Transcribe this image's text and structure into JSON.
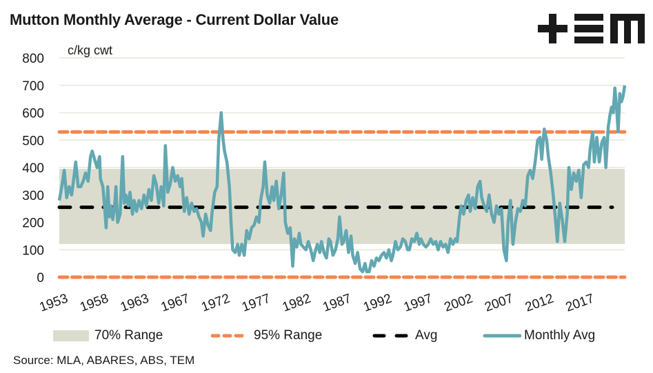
{
  "title": "Mutton Monthly Average - Current Dollar Value",
  "logo": {
    "name": "tem-logo",
    "glyphs": [
      "plus",
      "equals-triple",
      "m"
    ]
  },
  "source": "Source: MLA, ABARES, ABS, TEM",
  "colors": {
    "monthly": "#62a7b1",
    "avg": "#000000",
    "range95": "#f4854e",
    "range70": "#dcdcce",
    "grid": "#ecece4"
  },
  "legend": [
    {
      "key": "range70",
      "label": "70% Range"
    },
    {
      "key": "range95",
      "label": "95% Range"
    },
    {
      "key": "avg",
      "label": "Avg"
    },
    {
      "key": "monthly",
      "label": "Monthly Avg"
    }
  ],
  "chart_data": {
    "type": "line",
    "title": "Mutton Monthly Average - Current Dollar Value",
    "ylabel": "c/kg cwt",
    "xlabel": "",
    "ylim": [
      0,
      800
    ],
    "yticks": [
      0,
      100,
      200,
      300,
      400,
      500,
      600,
      700,
      800
    ],
    "xlim": [
      1953,
      2020.5
    ],
    "xtick_labels": [
      "1953",
      "1958",
      "1963",
      "1967",
      "1972",
      "1977",
      "1982",
      "1987",
      "1992",
      "1997",
      "2002",
      "2007",
      "2012",
      "2017"
    ],
    "grid": true,
    "legend_position": "bottom",
    "bands": {
      "range70": {
        "low": 121,
        "high": 395
      },
      "range95": {
        "low": 0,
        "high": 530
      },
      "avg": 255
    },
    "series": [
      {
        "name": "Monthly Avg",
        "points": [
          [
            1953.0,
            280
          ],
          [
            1953.3,
            330
          ],
          [
            1953.6,
            390
          ],
          [
            1953.9,
            290
          ],
          [
            1954.2,
            330
          ],
          [
            1954.5,
            300
          ],
          [
            1954.8,
            370
          ],
          [
            1955.0,
            420
          ],
          [
            1955.3,
            330
          ],
          [
            1955.6,
            330
          ],
          [
            1955.9,
            350
          ],
          [
            1956.2,
            380
          ],
          [
            1956.5,
            350
          ],
          [
            1956.8,
            440
          ],
          [
            1957.0,
            460
          ],
          [
            1957.3,
            430
          ],
          [
            1957.6,
            400
          ],
          [
            1957.9,
            440
          ],
          [
            1958.0,
            360
          ],
          [
            1958.3,
            330
          ],
          [
            1958.5,
            260
          ],
          [
            1958.7,
            180
          ],
          [
            1958.9,
            330
          ],
          [
            1959.1,
            220
          ],
          [
            1959.3,
            260
          ],
          [
            1959.5,
            210
          ],
          [
            1959.7,
            250
          ],
          [
            1959.9,
            330
          ],
          [
            1960.1,
            200
          ],
          [
            1960.4,
            230
          ],
          [
            1960.7,
            440
          ],
          [
            1960.9,
            270
          ],
          [
            1961.1,
            300
          ],
          [
            1961.4,
            260
          ],
          [
            1961.6,
            310
          ],
          [
            1961.9,
            230
          ],
          [
            1962.1,
            280
          ],
          [
            1962.4,
            240
          ],
          [
            1962.7,
            280
          ],
          [
            1963.0,
            250
          ],
          [
            1963.3,
            300
          ],
          [
            1963.6,
            260
          ],
          [
            1963.9,
            320
          ],
          [
            1964.2,
            280
          ],
          [
            1964.5,
            370
          ],
          [
            1964.8,
            340
          ],
          [
            1965.1,
            270
          ],
          [
            1965.4,
            330
          ],
          [
            1965.7,
            260
          ],
          [
            1965.9,
            480
          ],
          [
            1966.2,
            310
          ],
          [
            1966.5,
            340
          ],
          [
            1966.8,
            400
          ],
          [
            1967.1,
            350
          ],
          [
            1967.4,
            370
          ],
          [
            1967.7,
            330
          ],
          [
            1967.9,
            360
          ],
          [
            1968.2,
            240
          ],
          [
            1968.5,
            290
          ],
          [
            1968.8,
            230
          ],
          [
            1969.1,
            270
          ],
          [
            1969.4,
            240
          ],
          [
            1969.7,
            250
          ],
          [
            1970.0,
            220
          ],
          [
            1970.3,
            200
          ],
          [
            1970.5,
            150
          ],
          [
            1970.8,
            230
          ],
          [
            1971.1,
            190
          ],
          [
            1971.4,
            170
          ],
          [
            1971.6,
            240
          ],
          [
            1971.9,
            310
          ],
          [
            1972.2,
            330
          ],
          [
            1972.4,
            500
          ],
          [
            1972.7,
            600
          ],
          [
            1972.9,
            510
          ],
          [
            1973.1,
            460
          ],
          [
            1973.4,
            420
          ],
          [
            1973.7,
            330
          ],
          [
            1973.9,
            200
          ],
          [
            1974.1,
            100
          ],
          [
            1974.4,
            90
          ],
          [
            1974.7,
            120
          ],
          [
            1974.9,
            80
          ],
          [
            1975.2,
            120
          ],
          [
            1975.5,
            80
          ],
          [
            1975.8,
            170
          ],
          [
            1976.1,
            140
          ],
          [
            1976.4,
            180
          ],
          [
            1976.7,
            190
          ],
          [
            1977.0,
            220
          ],
          [
            1977.3,
            200
          ],
          [
            1977.5,
            280
          ],
          [
            1977.8,
            330
          ],
          [
            1978.0,
            420
          ],
          [
            1978.3,
            300
          ],
          [
            1978.6,
            270
          ],
          [
            1978.9,
            330
          ],
          [
            1979.1,
            280
          ],
          [
            1979.4,
            350
          ],
          [
            1979.7,
            250
          ],
          [
            1980.0,
            300
          ],
          [
            1980.3,
            380
          ],
          [
            1980.5,
            200
          ],
          [
            1980.8,
            160
          ],
          [
            1981.1,
            180
          ],
          [
            1981.4,
            40
          ],
          [
            1981.6,
            140
          ],
          [
            1981.9,
            110
          ],
          [
            1982.2,
            160
          ],
          [
            1982.4,
            120
          ],
          [
            1982.7,
            110
          ],
          [
            1983.0,
            100
          ],
          [
            1983.3,
            130
          ],
          [
            1983.6,
            100
          ],
          [
            1983.9,
            60
          ],
          [
            1984.1,
            90
          ],
          [
            1984.4,
            120
          ],
          [
            1984.7,
            90
          ],
          [
            1984.9,
            130
          ],
          [
            1985.2,
            90
          ],
          [
            1985.5,
            70
          ],
          [
            1985.8,
            140
          ],
          [
            1986.0,
            130
          ],
          [
            1986.3,
            80
          ],
          [
            1986.6,
            100
          ],
          [
            1986.9,
            140
          ],
          [
            1987.1,
            220
          ],
          [
            1987.4,
            120
          ],
          [
            1987.6,
            130
          ],
          [
            1987.9,
            170
          ],
          [
            1988.2,
            90
          ],
          [
            1988.5,
            150
          ],
          [
            1988.7,
            80
          ],
          [
            1989.0,
            50
          ],
          [
            1989.3,
            90
          ],
          [
            1989.6,
            30
          ],
          [
            1989.9,
            20
          ],
          [
            1990.2,
            50
          ],
          [
            1990.4,
            20
          ],
          [
            1990.7,
            20
          ],
          [
            1991.0,
            60
          ],
          [
            1991.3,
            40
          ],
          [
            1991.6,
            70
          ],
          [
            1991.9,
            60
          ],
          [
            1992.2,
            80
          ],
          [
            1992.5,
            90
          ],
          [
            1992.8,
            70
          ],
          [
            1993.1,
            100
          ],
          [
            1993.4,
            60
          ],
          [
            1993.6,
            80
          ],
          [
            1993.9,
            130
          ],
          [
            1994.2,
            100
          ],
          [
            1994.5,
            110
          ],
          [
            1994.8,
            140
          ],
          [
            1995.1,
            130
          ],
          [
            1995.4,
            100
          ],
          [
            1995.6,
            100
          ],
          [
            1995.9,
            140
          ],
          [
            1996.2,
            130
          ],
          [
            1996.5,
            160
          ],
          [
            1996.8,
            120
          ],
          [
            1997.0,
            140
          ],
          [
            1997.3,
            120
          ],
          [
            1997.6,
            110
          ],
          [
            1997.9,
            120
          ],
          [
            1998.2,
            140
          ],
          [
            1998.5,
            120
          ],
          [
            1998.8,
            130
          ],
          [
            1999.1,
            100
          ],
          [
            1999.4,
            130
          ],
          [
            1999.7,
            110
          ],
          [
            2000.0,
            120
          ],
          [
            2000.3,
            90
          ],
          [
            2000.6,
            140
          ],
          [
            2000.9,
            120
          ],
          [
            2001.2,
            140
          ],
          [
            2001.4,
            130
          ],
          [
            2001.7,
            220
          ],
          [
            2001.9,
            260
          ],
          [
            2002.2,
            230
          ],
          [
            2002.5,
            280
          ],
          [
            2002.8,
            300
          ],
          [
            2003.0,
            240
          ],
          [
            2003.3,
            290
          ],
          [
            2003.6,
            250
          ],
          [
            2003.9,
            330
          ],
          [
            2004.2,
            350
          ],
          [
            2004.4,
            290
          ],
          [
            2004.7,
            260
          ],
          [
            2005.0,
            240
          ],
          [
            2005.3,
            300
          ],
          [
            2005.6,
            230
          ],
          [
            2005.9,
            200
          ],
          [
            2006.2,
            260
          ],
          [
            2006.5,
            230
          ],
          [
            2006.8,
            250
          ],
          [
            2007.1,
            100
          ],
          [
            2007.4,
            60
          ],
          [
            2007.6,
            200
          ],
          [
            2007.9,
            280
          ],
          [
            2008.2,
            120
          ],
          [
            2008.5,
            200
          ],
          [
            2008.8,
            250
          ],
          [
            2009.1,
            240
          ],
          [
            2009.4,
            280
          ],
          [
            2009.7,
            260
          ],
          [
            2010.0,
            370
          ],
          [
            2010.3,
            390
          ],
          [
            2010.6,
            360
          ],
          [
            2010.9,
            420
          ],
          [
            2011.2,
            500
          ],
          [
            2011.5,
            510
          ],
          [
            2011.7,
            430
          ],
          [
            2012.0,
            540
          ],
          [
            2012.3,
            500
          ],
          [
            2012.5,
            440
          ],
          [
            2012.8,
            380
          ],
          [
            2013.1,
            300
          ],
          [
            2013.4,
            200
          ],
          [
            2013.6,
            130
          ],
          [
            2013.9,
            270
          ],
          [
            2014.2,
            210
          ],
          [
            2014.5,
            130
          ],
          [
            2014.8,
            230
          ],
          [
            2015.0,
            400
          ],
          [
            2015.3,
            320
          ],
          [
            2015.6,
            380
          ],
          [
            2015.9,
            350
          ],
          [
            2016.2,
            390
          ],
          [
            2016.5,
            290
          ],
          [
            2016.8,
            410
          ],
          [
            2017.1,
            420
          ],
          [
            2017.4,
            400
          ],
          [
            2017.6,
            470
          ],
          [
            2017.9,
            530
          ],
          [
            2018.1,
            420
          ],
          [
            2018.4,
            510
          ],
          [
            2018.7,
            420
          ],
          [
            2019.0,
            490
          ],
          [
            2019.3,
            510
          ],
          [
            2019.5,
            400
          ],
          [
            2019.8,
            550
          ],
          [
            2020.0,
            590
          ],
          [
            2020.2,
            620
          ],
          [
            2020.4,
            600
          ],
          [
            2020.6,
            690
          ],
          [
            2020.8,
            620
          ],
          [
            2021.0,
            530
          ],
          [
            2021.2,
            670
          ],
          [
            2021.4,
            640
          ],
          [
            2021.6,
            660
          ],
          [
            2021.8,
            700
          ]
        ]
      }
    ]
  }
}
